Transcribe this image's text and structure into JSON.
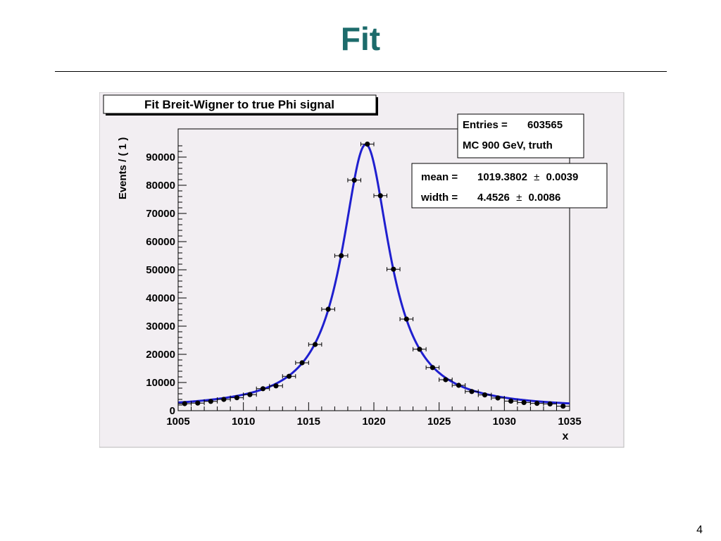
{
  "slide": {
    "title": "Fit",
    "page_number": "4"
  },
  "colors": {
    "title": "#1c6b6b",
    "canvas_background": "#f2eef2",
    "fit_curve": "#1f1fcf",
    "markers": "#000000"
  },
  "chart_data": {
    "type": "scatter",
    "title": "Fit Breit-Wigner to true Phi signal",
    "xlabel": "x",
    "ylabel": "Events / ( 1 )",
    "xlim": [
      1005,
      1035
    ],
    "ylim": [
      0,
      100000
    ],
    "xticks": [
      "1005",
      "1010",
      "1015",
      "1020",
      "1025",
      "1030",
      "1035"
    ],
    "yticks": [
      "0",
      "10000",
      "20000",
      "30000",
      "40000",
      "50000",
      "60000",
      "70000",
      "80000",
      "90000"
    ],
    "grid": false,
    "stats_box": {
      "entries_label": "Entries =",
      "entries_value": "603565",
      "note": "MC 900 GeV, truth"
    },
    "fit_box": {
      "mean_label": "mean =",
      "mean_value": "1019.3802",
      "mean_error": "0.0039",
      "width_label": "width =",
      "width_value": "4.4526",
      "width_error": "0.0086",
      "pm": "±"
    },
    "fit": {
      "model": "Breit-Wigner",
      "mean": 1019.3802,
      "width": 4.4526,
      "peak": 94500,
      "baseline": 700
    },
    "series": [
      {
        "x": [
          1005.5,
          1006.5,
          1007.5,
          1008.5,
          1009.5,
          1010.5,
          1011.5,
          1012.5,
          1013.5,
          1014.5,
          1015.5,
          1016.5,
          1017.5,
          1018.5,
          1019.5,
          1020.5,
          1021.5,
          1022.5,
          1023.5,
          1024.5,
          1025.5,
          1026.5,
          1027.5,
          1028.5,
          1029.5,
          1030.5,
          1031.5,
          1032.5,
          1033.5,
          1034.5
        ],
        "y": [
          2500,
          2700,
          3300,
          4000,
          4600,
          5700,
          7800,
          8800,
          12200,
          17000,
          23500,
          36000,
          55000,
          81800,
          94600,
          76300,
          50200,
          32500,
          21800,
          15300,
          11000,
          9000,
          6800,
          5600,
          4500,
          3400,
          2900,
          2600,
          2400,
          1600
        ]
      }
    ]
  }
}
